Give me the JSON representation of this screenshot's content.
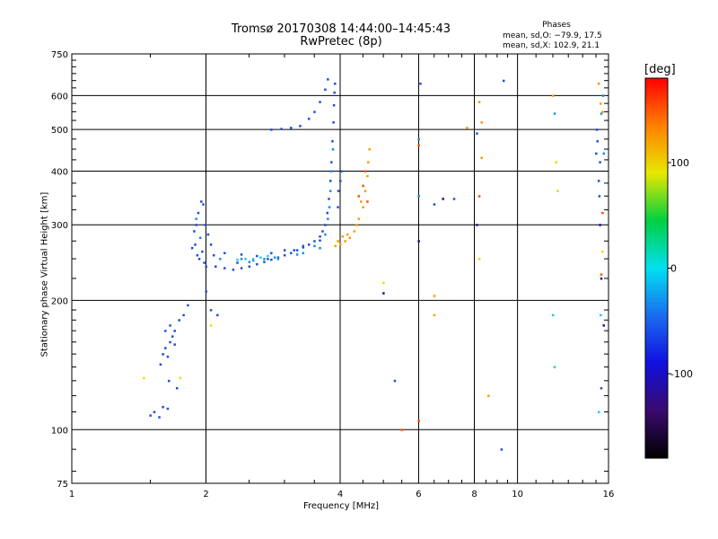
{
  "header": {
    "title_line1": "Tromsø 20170308 14:44:00–14:45:43",
    "title_line2": "RwPretec (8p)",
    "phases_title": "Phases",
    "phases_o": "mean, sd,O: −79.9, 17.5",
    "phases_x": "mean, sd,X: 102.9, 21.1"
  },
  "chart_data": {
    "type": "scatter",
    "xlabel": "Frequency [MHz]",
    "ylabel": "Stationary phase Virtual Height [km]",
    "x_scale": "log",
    "y_scale": "log",
    "xlim": [
      1,
      16
    ],
    "ylim": [
      75,
      750
    ],
    "x_ticks": [
      1,
      2,
      4,
      6,
      8,
      10,
      16
    ],
    "y_ticks": [
      75,
      100,
      200,
      300,
      400,
      500,
      600,
      750
    ],
    "grid": true,
    "colorbar": {
      "label": "[deg]",
      "min": -180,
      "max": 180,
      "ticks": [
        100,
        0,
        -100
      ],
      "colors": [
        "#000000",
        "#3a0a6e",
        "#1010e0",
        "#1a6cf0",
        "#00e0f0",
        "#00d040",
        "#e8e800",
        "#ff8000",
        "#ff0000"
      ]
    },
    "series": [
      {
        "phase": -100,
        "color": "#1e50d8",
        "points": [
          [
            1.5,
            108
          ],
          [
            1.53,
            110
          ],
          [
            1.57,
            107
          ],
          [
            1.6,
            113
          ],
          [
            1.64,
            112
          ],
          [
            1.58,
            142
          ],
          [
            1.6,
            150
          ],
          [
            1.62,
            155
          ],
          [
            1.64,
            148
          ],
          [
            1.66,
            160
          ],
          [
            1.68,
            165
          ],
          [
            1.7,
            158
          ],
          [
            1.62,
            170
          ],
          [
            1.66,
            175
          ],
          [
            1.7,
            170
          ],
          [
            1.74,
            180
          ],
          [
            1.78,
            185
          ],
          [
            1.82,
            195
          ],
          [
            1.65,
            130
          ],
          [
            1.72,
            125
          ],
          [
            1.88,
            290
          ],
          [
            1.9,
            300
          ],
          [
            1.92,
            320
          ],
          [
            1.95,
            340
          ],
          [
            1.97,
            335
          ],
          [
            1.89,
            270
          ],
          [
            1.91,
            255
          ],
          [
            1.93,
            250
          ],
          [
            1.96,
            260
          ],
          [
            1.98,
            245
          ],
          [
            2.0,
            240
          ],
          [
            2.02,
            285
          ],
          [
            2.05,
            270
          ],
          [
            2.08,
            255
          ],
          [
            1.86,
            265
          ],
          [
            1.99,
            300
          ],
          [
            2.1,
            240
          ],
          [
            2.2,
            238
          ],
          [
            2.3,
            236
          ],
          [
            2.4,
            238
          ],
          [
            2.5,
            240
          ],
          [
            2.6,
            243
          ],
          [
            2.7,
            246
          ],
          [
            2.8,
            249
          ],
          [
            2.9,
            252
          ],
          [
            3.0,
            255
          ],
          [
            3.1,
            258
          ],
          [
            3.2,
            262
          ],
          [
            3.3,
            266
          ],
          [
            3.4,
            270
          ],
          [
            3.5,
            275
          ],
          [
            3.6,
            282
          ],
          [
            3.65,
            290
          ],
          [
            3.7,
            300
          ],
          [
            3.74,
            320
          ],
          [
            3.77,
            345
          ],
          [
            3.8,
            380
          ],
          [
            3.82,
            420
          ],
          [
            3.84,
            470
          ],
          [
            3.86,
            520
          ],
          [
            3.87,
            570
          ],
          [
            3.88,
            610
          ],
          [
            3.89,
            640
          ],
          [
            2.2,
            258
          ],
          [
            2.4,
            256
          ],
          [
            2.6,
            254
          ],
          [
            2.8,
            258
          ],
          [
            3.0,
            262
          ],
          [
            3.3,
            268
          ],
          [
            3.6,
            276
          ],
          [
            2.35,
            245
          ],
          [
            2.75,
            250
          ],
          [
            3.15,
            262
          ],
          [
            2.8,
            500
          ],
          [
            2.95,
            502
          ],
          [
            3.1,
            505
          ],
          [
            3.25,
            510
          ],
          [
            3.4,
            530
          ],
          [
            3.5,
            550
          ],
          [
            3.6,
            580
          ],
          [
            3.7,
            620
          ],
          [
            3.75,
            655
          ],
          [
            2.05,
            190
          ],
          [
            2.12,
            185
          ],
          [
            2.0,
            210
          ],
          [
            4.0,
            380
          ],
          [
            4.02,
            400
          ],
          [
            3.96,
            360
          ],
          [
            3.95,
            330
          ],
          [
            5.3,
            130
          ],
          [
            6.05,
            640
          ],
          [
            7.2,
            345
          ],
          [
            6.5,
            335
          ],
          [
            8.1,
            490
          ],
          [
            9.3,
            650
          ],
          [
            9.2,
            90
          ],
          [
            15.1,
            470
          ],
          [
            15.2,
            380
          ],
          [
            15.25,
            350
          ],
          [
            15.3,
            420
          ],
          [
            15.0,
            440
          ],
          [
            15.4,
            125
          ],
          [
            15.05,
            500
          ]
        ]
      },
      {
        "phase": -60,
        "color": "#1a8ce8",
        "points": [
          [
            1.9,
            310
          ],
          [
            1.94,
            280
          ],
          [
            2.15,
            250
          ],
          [
            2.5,
            246
          ],
          [
            2.9,
            250
          ],
          [
            3.2,
            256
          ],
          [
            3.5,
            268
          ],
          [
            3.7,
            285
          ],
          [
            3.75,
            310
          ],
          [
            3.78,
            330
          ],
          [
            3.8,
            360
          ],
          [
            3.82,
            400
          ],
          [
            3.85,
            450
          ],
          [
            3.6,
            265
          ],
          [
            3.3,
            258
          ],
          [
            2.4,
            250
          ],
          [
            2.55,
            248
          ],
          [
            2.7,
            250
          ],
          [
            2.85,
            252
          ],
          [
            6.0,
            475
          ],
          [
            6.0,
            350
          ],
          [
            15.4,
            545
          ],
          [
            15.6,
            440
          ],
          [
            12.1,
            545
          ],
          [
            15.55,
            600
          ]
        ]
      },
      {
        "phase": -20,
        "color": "#22c8f0",
        "points": [
          [
            2.55,
            250
          ],
          [
            2.65,
            252
          ],
          [
            2.75,
            254
          ],
          [
            2.45,
            250
          ],
          [
            2.35,
            249
          ],
          [
            12.0,
            185
          ],
          [
            12.1,
            140
          ],
          [
            15.2,
            110
          ],
          [
            15.35,
            185
          ]
        ]
      },
      {
        "phase": 60,
        "color": "#f0d800",
        "points": [
          [
            1.45,
            132
          ],
          [
            1.75,
            132
          ],
          [
            2.05,
            175
          ],
          [
            5.0,
            220
          ],
          [
            8.2,
            250
          ],
          [
            12.2,
            420
          ],
          [
            12.3,
            360
          ],
          [
            15.5,
            260
          ]
        ]
      },
      {
        "phase": 100,
        "color": "#f0a000",
        "points": [
          [
            3.9,
            268
          ],
          [
            4.0,
            270
          ],
          [
            4.1,
            275
          ],
          [
            4.2,
            280
          ],
          [
            4.3,
            290
          ],
          [
            4.4,
            310
          ],
          [
            4.5,
            330
          ],
          [
            4.55,
            360
          ],
          [
            4.6,
            390
          ],
          [
            4.62,
            420
          ],
          [
            4.65,
            450
          ],
          [
            4.15,
            285
          ],
          [
            4.35,
            300
          ],
          [
            4.45,
            340
          ],
          [
            4.05,
            282
          ],
          [
            3.95,
            275
          ],
          [
            6.5,
            205
          ],
          [
            6.5,
            185
          ],
          [
            8.2,
            580
          ],
          [
            8.3,
            520
          ],
          [
            8.3,
            430
          ],
          [
            8.6,
            120
          ],
          [
            7.7,
            505
          ],
          [
            12.0,
            600
          ],
          [
            15.2,
            640
          ],
          [
            15.35,
            575
          ],
          [
            15.5,
            550
          ]
        ]
      },
      {
        "phase": 140,
        "color": "#ff5000",
        "points": [
          [
            4.5,
            370
          ],
          [
            4.55,
            400
          ],
          [
            4.6,
            340
          ],
          [
            4.4,
            350
          ],
          [
            5.5,
            100
          ],
          [
            6.0,
            460
          ],
          [
            6.0,
            105
          ],
          [
            8.2,
            350
          ],
          [
            15.4,
            230
          ],
          [
            15.5,
            320
          ]
        ]
      },
      {
        "phase": -150,
        "color": "#2a0a80",
        "points": [
          [
            5.0,
            208
          ],
          [
            6.0,
            275
          ],
          [
            6.8,
            345
          ],
          [
            8.1,
            300
          ],
          [
            15.3,
            300
          ],
          [
            15.4,
            225
          ],
          [
            15.6,
            175
          ]
        ]
      }
    ]
  }
}
